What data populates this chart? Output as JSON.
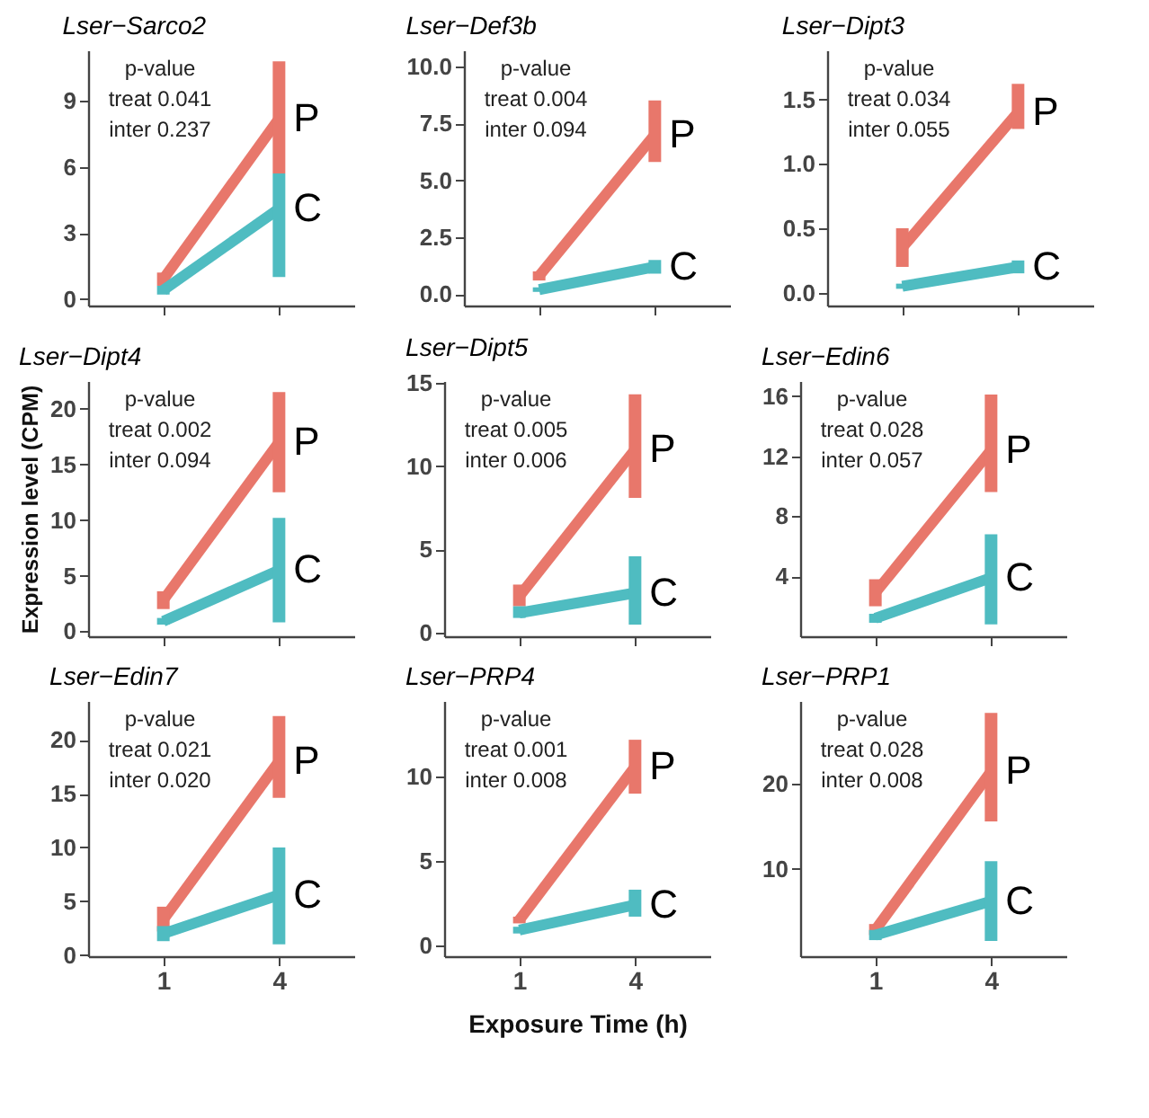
{
  "chart_data": [
    {
      "type": "line",
      "title": "Lser−Sarco2",
      "categories": [
        "1",
        "4"
      ],
      "ylim": [
        -0.3,
        11.3
      ],
      "yticks": [
        0,
        3,
        6,
        9
      ],
      "tick_labels": "y",
      "annotations": [
        "p-value",
        "treat 0.041",
        "inter 0.237"
      ],
      "series": [
        {
          "name": "P",
          "color": "#e8776b",
          "values": [
            0.9,
            8.2
          ],
          "errors": [
            [
              0.6,
              1.2
            ],
            [
              5.7,
              10.8
            ]
          ]
        },
        {
          "name": "C",
          "color": "#4fbcc1",
          "values": [
            0.4,
            4.1
          ],
          "errors": [
            [
              0.2,
              0.6
            ],
            [
              1.0,
              5.7
            ]
          ]
        }
      ]
    },
    {
      "type": "line",
      "title": "Lser−Def3b",
      "categories": [
        "1",
        "4"
      ],
      "ylim": [
        -0.5,
        10.7
      ],
      "yticks": [
        {
          "value": 0,
          "label": "0.0"
        },
        2.5,
        {
          "value": 5,
          "label": "5.0"
        },
        7.5,
        {
          "value": 10,
          "label": "10.0"
        }
      ],
      "tick_labels": "y",
      "annotations": [
        "p-value",
        "treat 0.004",
        "inter 0.094"
      ],
      "series": [
        {
          "name": "P",
          "color": "#e8776b",
          "values": [
            0.8,
            7.0
          ],
          "errors": [
            [
              0.6,
              1.0
            ],
            [
              5.8,
              8.5
            ]
          ]
        },
        {
          "name": "C",
          "color": "#4fbcc1",
          "values": [
            0.2,
            1.2
          ],
          "errors": [
            [
              0.1,
              0.3
            ],
            [
              0.9,
              1.5
            ]
          ]
        }
      ]
    },
    {
      "type": "line",
      "title": "Lser−Dipt3",
      "categories": [
        "1",
        "4"
      ],
      "ylim": [
        -0.1,
        1.88
      ],
      "yticks": [
        {
          "value": 0,
          "label": "0.0"
        },
        0.5,
        {
          "value": 1,
          "label": "1.0"
        },
        1.5
      ],
      "tick_labels": "y",
      "annotations": [
        "p-value",
        "treat 0.034",
        "inter 0.055"
      ],
      "series": [
        {
          "name": "P",
          "color": "#e8776b",
          "values": [
            0.35,
            1.4
          ],
          "errors": [
            [
              0.2,
              0.5
            ],
            [
              1.27,
              1.62
            ]
          ]
        },
        {
          "name": "C",
          "color": "#4fbcc1",
          "values": [
            0.05,
            0.2
          ],
          "errors": [
            [
              0.03,
              0.07
            ],
            [
              0.15,
              0.25
            ]
          ]
        }
      ]
    },
    {
      "type": "line",
      "title": "Lser−Dipt4",
      "ylabel": "Expression level (CPM)",
      "categories": [
        "1",
        "4"
      ],
      "ylim": [
        -0.45,
        22.5
      ],
      "yticks": [
        0,
        5,
        10,
        15,
        20
      ],
      "tick_labels": "y",
      "annotations": [
        "p-value",
        "treat 0.002",
        "inter 0.094"
      ],
      "series": [
        {
          "name": "P",
          "color": "#e8776b",
          "values": [
            2.8,
            17
          ],
          "errors": [
            [
              2.0,
              3.6
            ],
            [
              12.5,
              21.5
            ]
          ]
        },
        {
          "name": "C",
          "color": "#4fbcc1",
          "values": [
            0.9,
            5.5
          ],
          "errors": [
            [
              0.6,
              1.2
            ],
            [
              0.8,
              10.2
            ]
          ]
        }
      ]
    },
    {
      "type": "line",
      "title": "Lser−Dipt5",
      "categories": [
        "1",
        "4"
      ],
      "ylim": [
        -0.2,
        15.1
      ],
      "yticks": [
        0,
        5,
        10,
        15
      ],
      "tick_labels": "y",
      "annotations": [
        "p-value",
        "treat 0.005",
        "inter 0.006"
      ],
      "series": [
        {
          "name": "P",
          "color": "#e8776b",
          "values": [
            2.2,
            11
          ],
          "errors": [
            [
              1.6,
              2.9
            ],
            [
              8.1,
              14.3
            ]
          ]
        },
        {
          "name": "C",
          "color": "#4fbcc1",
          "values": [
            1.2,
            2.4
          ],
          "errors": [
            [
              0.9,
              1.6
            ],
            [
              0.5,
              4.6
            ]
          ]
        }
      ]
    },
    {
      "type": "line",
      "title": "Lser−Edin6",
      "categories": [
        "1",
        "4"
      ],
      "ylim": [
        0,
        17
      ],
      "yticks": [
        4,
        8,
        12,
        16
      ],
      "tick_labels": "y",
      "annotations": [
        "p-value",
        "treat 0.028",
        "inter 0.057"
      ],
      "series": [
        {
          "name": "P",
          "color": "#e8776b",
          "values": [
            2.9,
            12.4
          ],
          "errors": [
            [
              2.0,
              3.8
            ],
            [
              9.6,
              16.1
            ]
          ]
        },
        {
          "name": "C",
          "color": "#4fbcc1",
          "values": [
            1.2,
            3.9
          ],
          "errors": [
            [
              0.9,
              1.5
            ],
            [
              0.8,
              6.8
            ]
          ]
        }
      ]
    },
    {
      "type": "line",
      "title": "Lser−Edin7",
      "categories": [
        "1",
        "4"
      ],
      "ylim": [
        -0.1,
        23.6
      ],
      "yticks": [
        0,
        5,
        10,
        15,
        20
      ],
      "annotations": [
        "p-value",
        "treat 0.021",
        "inter 0.020"
      ],
      "series": [
        {
          "name": "P",
          "color": "#e8776b",
          "values": [
            3.3,
            18
          ],
          "errors": [
            [
              2.2,
              4.5
            ],
            [
              14.6,
              22.2
            ]
          ]
        },
        {
          "name": "C",
          "color": "#4fbcc1",
          "values": [
            2.0,
            5.6
          ],
          "errors": [
            [
              1.3,
              2.7
            ],
            [
              1.0,
              10.0
            ]
          ]
        }
      ]
    },
    {
      "type": "line",
      "title": "Lser−PRP4",
      "xlabel": "Exposure Time (h)",
      "categories": [
        "1",
        "4"
      ],
      "ylim": [
        -0.65,
        14.5
      ],
      "yticks": [
        0,
        5,
        10
      ],
      "annotations": [
        "p-value",
        "treat 0.001",
        "inter 0.008"
      ],
      "series": [
        {
          "name": "P",
          "color": "#e8776b",
          "values": [
            1.5,
            10.6
          ],
          "errors": [
            [
              1.3,
              1.7
            ],
            [
              9.0,
              12.2
            ]
          ]
        },
        {
          "name": "C",
          "color": "#4fbcc1",
          "values": [
            0.9,
            2.4
          ],
          "errors": [
            [
              0.7,
              1.1
            ],
            [
              1.7,
              3.3
            ]
          ]
        }
      ]
    },
    {
      "type": "line",
      "title": "Lser−PRP1",
      "categories": [
        "1",
        "4"
      ],
      "ylim": [
        -0.3,
        29.8
      ],
      "yticks": [
        10,
        20
      ],
      "annotations": [
        "p-value",
        "treat 0.028",
        "inter 0.008"
      ],
      "series": [
        {
          "name": "P",
          "color": "#e8776b",
          "values": [
            2.8,
            21.5
          ],
          "errors": [
            [
              2.2,
              3.5
            ],
            [
              15.6,
              28.4
            ]
          ]
        },
        {
          "name": "C",
          "color": "#4fbcc1",
          "values": [
            2.2,
            6.2
          ],
          "errors": [
            [
              1.6,
              2.8
            ],
            [
              1.5,
              10.9
            ]
          ]
        }
      ]
    }
  ]
}
